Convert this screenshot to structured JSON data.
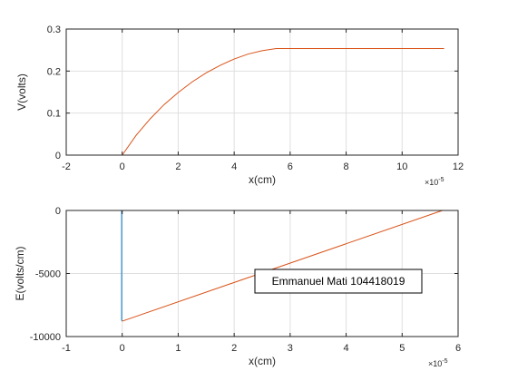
{
  "colors": {
    "background": "#ffffff",
    "axis": "#262626",
    "grid": "#dfdfdf",
    "series_blue": "#0072bd",
    "series_orange": "#d95319"
  },
  "chart_data": [
    {
      "type": "line",
      "title": "",
      "xlabel": "x(cm)",
      "ylabel": "V(volts)",
      "x_exponent": "×10",
      "x_exponent_power": "-5",
      "xlim": [
        -2,
        12
      ],
      "ylim": [
        0,
        0.3
      ],
      "xticks": [
        "-2",
        "0",
        "2",
        "4",
        "6",
        "8",
        "10",
        "12"
      ],
      "yticks": [
        "0",
        "0.1",
        "0.2",
        "0.3"
      ],
      "grid": true,
      "series": [
        {
          "color": "#0072bd",
          "x": [
            0,
            0.0
          ],
          "y": [
            0,
            0.0
          ]
        },
        {
          "color": "#d95319",
          "x": [
            0,
            0.5,
            1,
            1.5,
            2,
            2.5,
            3,
            3.5,
            4,
            4.5,
            5,
            5.5,
            6,
            7,
            8,
            9,
            10,
            11,
            11.5
          ],
          "y": [
            0,
            0.0474,
            0.0864,
            0.1204,
            0.1489,
            0.1743,
            0.1957,
            0.2136,
            0.2287,
            0.2405,
            0.2485,
            0.2535,
            0.2535,
            0.2535,
            0.2535,
            0.2535,
            0.2535,
            0.2535,
            0.2535
          ]
        }
      ]
    },
    {
      "type": "line",
      "title": "",
      "xlabel": "x(cm)",
      "ylabel": "E(volts/cm)",
      "x_exponent": "×10",
      "x_exponent_power": "-5",
      "xlim": [
        -1,
        6
      ],
      "ylim": [
        -10000,
        0
      ],
      "xticks": [
        "-1",
        "0",
        "1",
        "2",
        "3",
        "4",
        "5",
        "6"
      ],
      "yticks": [
        "-10000",
        "-5000",
        "0"
      ],
      "grid": true,
      "annotation": "Emmanuel Mati 104418019",
      "series": [
        {
          "color": "#0072bd",
          "x": [
            -0.01,
            -0.01,
            0
          ],
          "y": [
            0,
            -8700,
            -8780
          ]
        },
        {
          "color": "#d95319",
          "x": [
            0,
            5.72
          ],
          "y": [
            -8780,
            0
          ]
        }
      ]
    }
  ]
}
